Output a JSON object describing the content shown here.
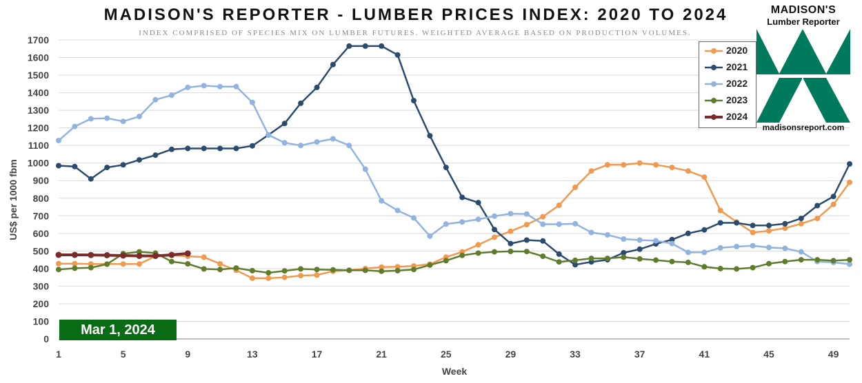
{
  "chart_data": {
    "type": "line",
    "title": "MADISON'S REPORTER - LUMBER PRICES INDEX: 2020 TO 2024",
    "subtitle": "INDEX COMPRISED OF SPECIES MIX ON LUMBER FUTURES. WEIGHTED AVERAGE BASED ON PRODUCTION VOLUMES.",
    "xlabel": "Week",
    "ylabel": "US$ per 1000 fbm",
    "xlim": [
      1,
      50
    ],
    "ylim": [
      0,
      1700
    ],
    "x_ticks": [
      1,
      5,
      9,
      13,
      17,
      21,
      25,
      29,
      33,
      37,
      41,
      45,
      49
    ],
    "y_ticks": [
      0,
      100,
      200,
      300,
      400,
      500,
      600,
      700,
      800,
      900,
      1000,
      1100,
      1200,
      1300,
      1400,
      1500,
      1600,
      1700
    ],
    "grid": "horizontal",
    "legend_position": "top-right",
    "annotation": "Mar 1, 2024",
    "series": [
      {
        "name": "2020",
        "color": "#f0994f",
        "values": [
          428,
          428,
          426,
          426,
          426,
          426,
          470,
          475,
          470,
          465,
          427,
          390,
          345,
          345,
          350,
          360,
          363,
          385,
          390,
          400,
          408,
          410,
          415,
          425,
          465,
          495,
          535,
          578,
          612,
          650,
          695,
          760,
          862,
          955,
          990,
          990,
          1000,
          990,
          975,
          955,
          920,
          730,
          665,
          605,
          615,
          630,
          655,
          685,
          765,
          890
        ]
      },
      {
        "name": "2021",
        "color": "#2a4a6e",
        "values": [
          985,
          980,
          910,
          975,
          990,
          1018,
          1045,
          1078,
          1083,
          1083,
          1083,
          1083,
          1098,
          1160,
          1225,
          1340,
          1430,
          1560,
          1665,
          1665,
          1665,
          1615,
          1355,
          1155,
          975,
          805,
          775,
          622,
          542,
          562,
          557,
          482,
          422,
          438,
          450,
          490,
          510,
          540,
          565,
          600,
          620,
          660,
          660,
          645,
          645,
          655,
          685,
          758,
          810,
          995
        ]
      },
      {
        "name": "2022",
        "color": "#91b3de",
        "values": [
          1128,
          1208,
          1252,
          1255,
          1237,
          1265,
          1360,
          1386,
          1430,
          1440,
          1435,
          1435,
          1345,
          1160,
          1115,
          1100,
          1120,
          1138,
          1100,
          965,
          785,
          730,
          688,
          585,
          653,
          665,
          680,
          698,
          712,
          710,
          652,
          652,
          655,
          605,
          592,
          568,
          562,
          558,
          542,
          492,
          492,
          518,
          525,
          530,
          520,
          515,
          495,
          440,
          435,
          425
        ]
      },
      {
        "name": "2023",
        "color": "#5e7c2c",
        "values": [
          395,
          402,
          405,
          425,
          485,
          495,
          488,
          440,
          427,
          398,
          395,
          403,
          388,
          376,
          387,
          398,
          395,
          393,
          390,
          390,
          385,
          388,
          395,
          420,
          445,
          475,
          488,
          495,
          498,
          497,
          470,
          438,
          447,
          458,
          458,
          465,
          455,
          448,
          440,
          435,
          410,
          400,
          398,
          405,
          428,
          440,
          450,
          450,
          445,
          450
        ]
      },
      {
        "name": "2024",
        "color": "#7b2b29",
        "values": [
          478,
          478,
          477,
          476,
          474,
          472,
          472,
          478,
          486
        ]
      }
    ]
  },
  "logo": {
    "title_line1": "MADISON'S",
    "title_line2": "Lumber Reporter",
    "url": "madisonsreport.com",
    "color": "#007a5c"
  }
}
